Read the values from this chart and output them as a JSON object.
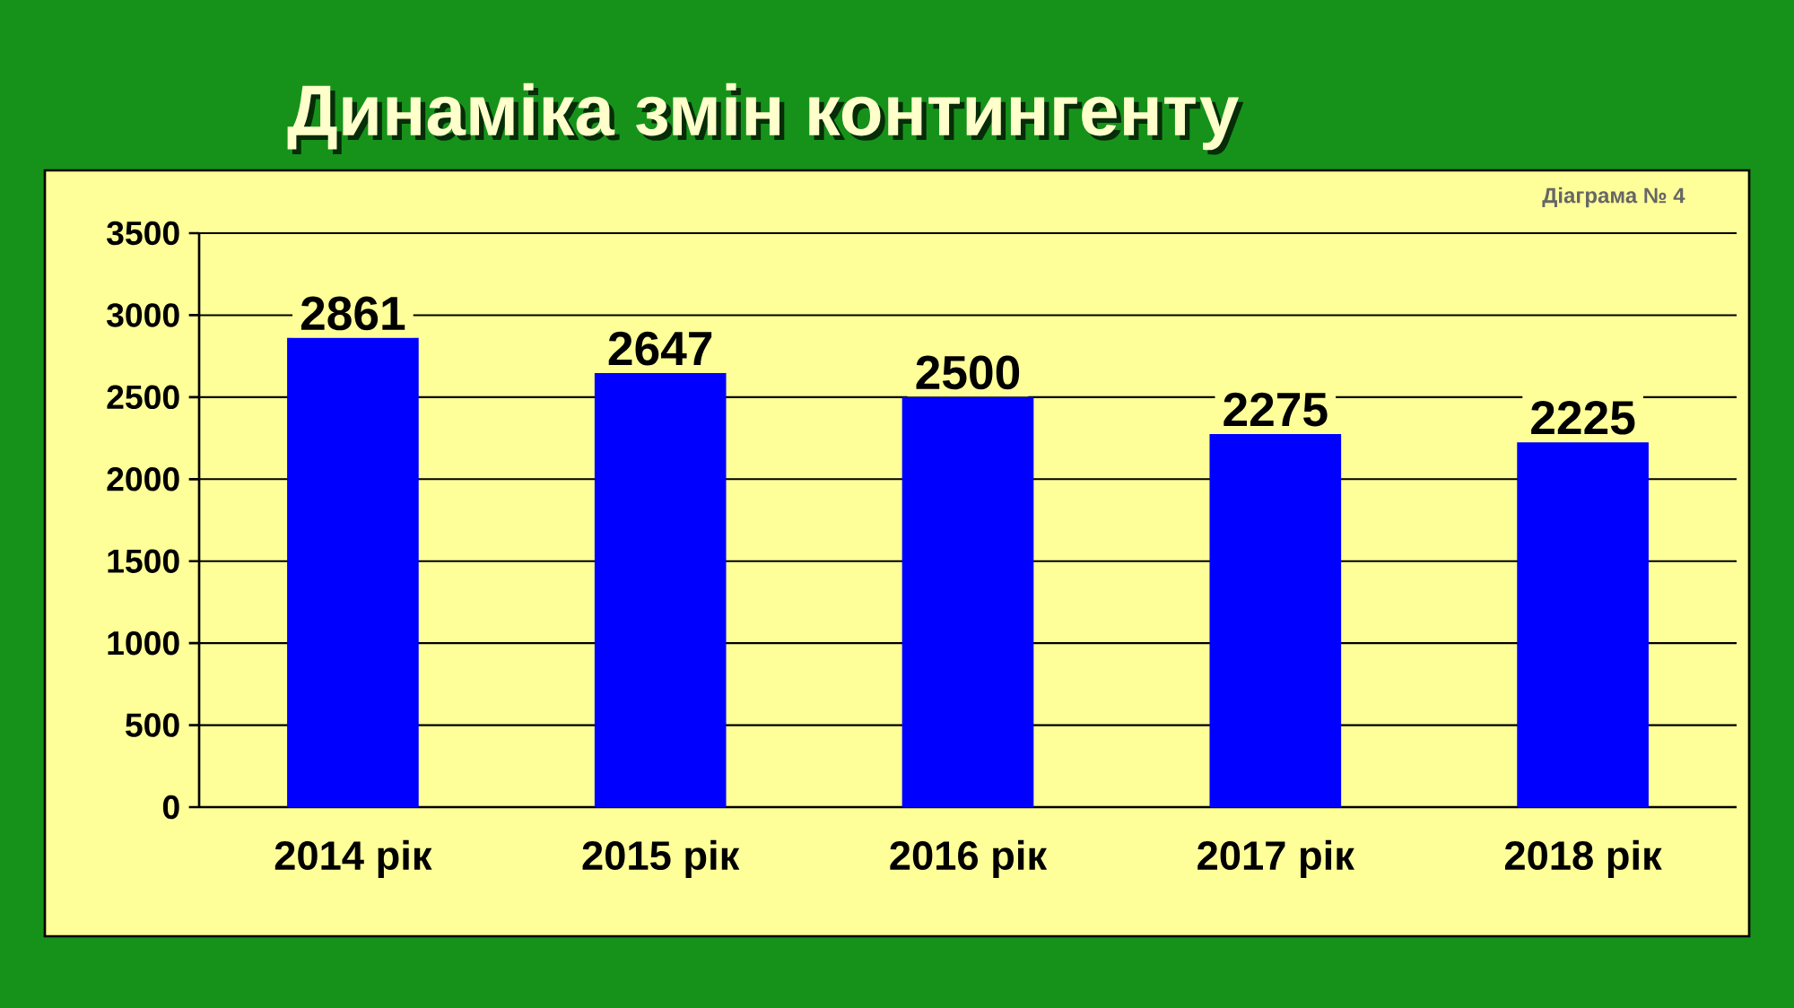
{
  "chart_data": {
    "type": "bar",
    "title": "Динаміка змін контингенту",
    "categories": [
      "2014 рік",
      "2015 рік",
      "2016 рік",
      "2017 рік",
      "2018 рік"
    ],
    "values": [
      2861,
      2647,
      2500,
      2275,
      2225
    ],
    "color": "#0000ff",
    "ylim": [
      0,
      3500
    ],
    "yticks": [
      0,
      500,
      1000,
      1500,
      2000,
      2500,
      3000,
      3500
    ],
    "grid": "y",
    "data_labels": true,
    "annotations": [
      "Діаграма № 4"
    ]
  }
}
